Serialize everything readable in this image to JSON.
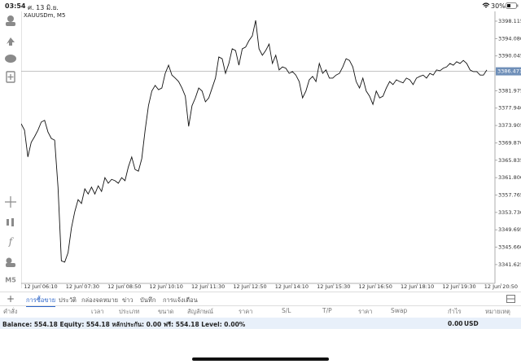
{
  "status_bar": {
    "time": "03:54",
    "date": "ศ. 13 มิ.ย.",
    "battery": "30%"
  },
  "toolbar": {
    "function": "f",
    "timeframe": "M5"
  },
  "chart": {
    "type": "line",
    "symbol": "XAUUSDm, M5",
    "color": "#111111",
    "xtick_labels": [
      "12 Jun 06:10",
      "12 Jun 07:30",
      "12 Jun 08:50",
      "12 Jun 10:10",
      "12 Jun 11:30",
      "12 Jun 12:50",
      "12 Jun 14:10",
      "12 Jun 15:30",
      "12 Jun 16:50",
      "12 Jun 18:10",
      "12 Jun 19:30",
      "12 Jun 20:50"
    ],
    "values": [
      3374.3,
      3372.8,
      3366.6,
      3370.0,
      3371.3,
      3372.8,
      3374.7,
      3375.1,
      3372.4,
      3370.9,
      3370.5,
      3359.6,
      3342.5,
      3342.2,
      3344.4,
      3350.1,
      3353.9,
      3356.7,
      3355.8,
      3359.2,
      3358.0,
      3359.6,
      3358.0,
      3359.9,
      3358.6,
      3361.8,
      3360.5,
      3361.4,
      3361.1,
      3360.5,
      3361.8,
      3361.1,
      3364.3,
      3366.6,
      3363.7,
      3363.3,
      3366.2,
      3372.8,
      3378.5,
      3381.9,
      3383.2,
      3382.2,
      3382.6,
      3386.0,
      3387.9,
      3385.6,
      3384.9,
      3384.1,
      3382.6,
      3380.7,
      3373.7,
      3378.5,
      3380.3,
      3382.6,
      3381.9,
      3379.4,
      3380.3,
      3382.6,
      3384.9,
      3389.8,
      3389.4,
      3386.0,
      3388.3,
      3391.7,
      3391.3,
      3387.9,
      3391.7,
      3392.1,
      3393.6,
      3394.7,
      3398.3,
      3391.7,
      3390.2,
      3391.3,
      3392.8,
      3388.3,
      3390.2,
      3386.8,
      3387.5,
      3387.2,
      3386.0,
      3386.4,
      3385.6,
      3384.1,
      3380.3,
      3381.9,
      3384.5,
      3385.3,
      3384.1,
      3388.3,
      3386.0,
      3386.8,
      3384.9,
      3384.9,
      3385.6,
      3386.0,
      3387.5,
      3389.4,
      3389.0,
      3387.5,
      3384.1,
      3382.6,
      3384.9,
      3381.9,
      3380.7,
      3378.8,
      3381.9,
      3380.3,
      3380.7,
      3382.6,
      3384.1,
      3383.4,
      3384.5,
      3384.1,
      3383.8,
      3384.9,
      3384.5,
      3383.4,
      3384.9,
      3385.3,
      3385.6,
      3384.9,
      3386.0,
      3385.6,
      3386.8,
      3386.6,
      3387.2,
      3387.5,
      3388.3,
      3387.9,
      3388.7,
      3388.3,
      3389.0,
      3388.3,
      3386.8,
      3386.4,
      3386.4,
      3385.6,
      3385.6,
      3386.8
    ],
    "ylim": [
      3337.26,
      3400.38
    ],
    "yticks": [
      3398.115,
      {
        "value": 3394.08,
        "label": "3394.080"
      },
      3390.045,
      3381.975,
      {
        "value": 3377.94,
        "label": "3377.940"
      },
      3373.905,
      {
        "value": 3369.87,
        "label": "3369.870"
      },
      3365.835,
      {
        "value": 3361.8,
        "label": "3361.800"
      },
      3357.765,
      {
        "value": 3353.73,
        "label": "3353.730"
      },
      3349.695,
      {
        "value": 3345.66,
        "label": "3345.660"
      },
      3341.625
    ],
    "current_price": 3386.471
  },
  "tabs": [
    "การซื้อขาย",
    "ประวัติ",
    "กล่องจดหมาย",
    "ข่าว",
    "บันทึก",
    "การแจ้งเตือน"
  ],
  "active_tab": 0,
  "table": {
    "columns": [
      "คำสั่ง",
      "เวลา",
      "ประเภท",
      "ขนาด",
      "สัญลักษณ์",
      "ราคา",
      "S/L",
      "T/P",
      "ราคา",
      "Swap",
      "กำไร",
      "หมายเหตุ"
    ]
  },
  "footer": {
    "summary": "Balance: 554.18 Equity: 554.18 หลักประกัน: 0.00 ฟรี: 554.18 Level: 0.00%",
    "profit": "0.00",
    "currency": "USD"
  }
}
